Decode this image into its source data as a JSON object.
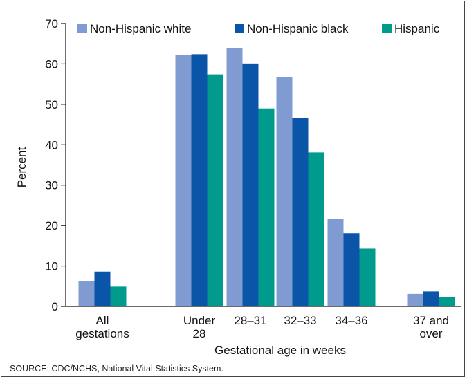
{
  "chart_data": {
    "type": "bar",
    "categories": [
      [
        "All",
        "gestations"
      ],
      [
        "Under",
        "28"
      ],
      [
        "28–31"
      ],
      [
        "32–33"
      ],
      [
        "34–36"
      ],
      [
        "37 and",
        "over"
      ]
    ],
    "series": [
      {
        "name": "Non-Hispanic white",
        "color": "#7f9bd1",
        "values": [
          6.2,
          62.3,
          63.9,
          56.7,
          21.6,
          3.1
        ]
      },
      {
        "name": "Non-Hispanic black",
        "color": "#0a55a8",
        "values": [
          8.6,
          62.4,
          60.1,
          46.6,
          18.1,
          3.7
        ]
      },
      {
        "name": "Hispanic",
        "color": "#009b8d",
        "values": [
          4.9,
          57.4,
          49.0,
          38.1,
          14.3,
          2.4
        ]
      }
    ],
    "xlabel": "Gestational age in weeks",
    "ylabel": "Percent",
    "ylim": [
      0,
      70
    ],
    "yticks": [
      0,
      10,
      20,
      30,
      40,
      50,
      60,
      70
    ],
    "legend_position": "top",
    "grid": false
  },
  "source": "SOURCE: CDC/NCHS, National Vital Statistics System."
}
